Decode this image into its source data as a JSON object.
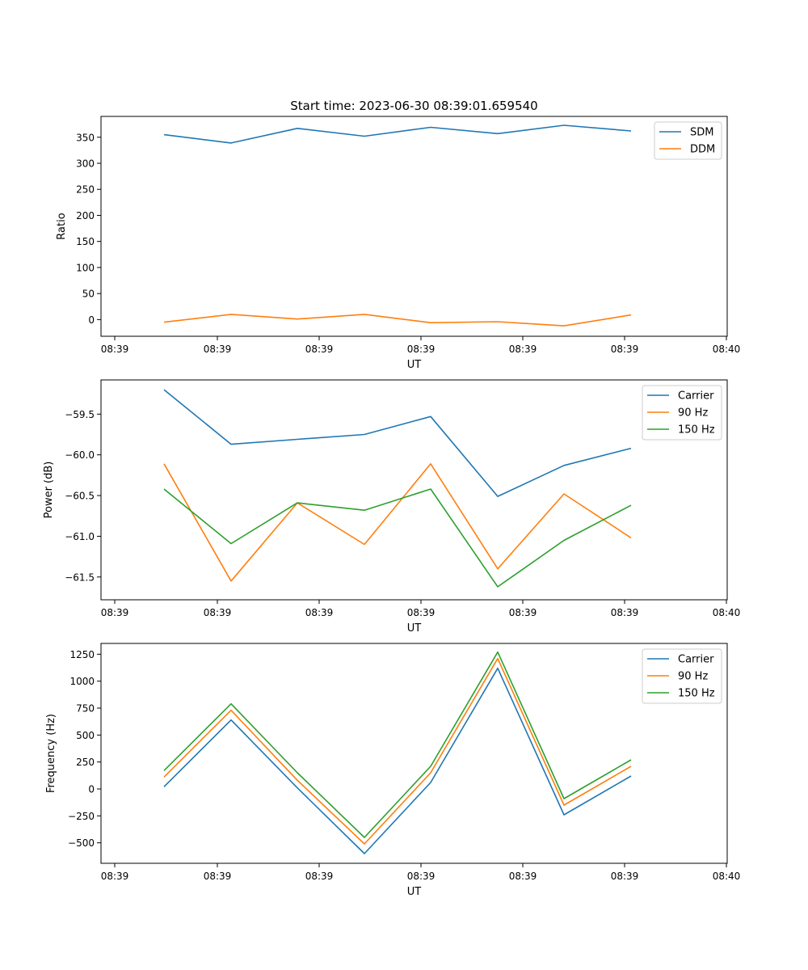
{
  "title": "Start time: 2023-06-30 08:39:01.659540",
  "chart_data": [
    {
      "type": "line",
      "xlabel": "UT",
      "ylabel": "Ratio",
      "x_tick_labels": [
        "08:39",
        "08:39",
        "08:39",
        "08:39",
        "08:39",
        "08:39",
        "08:39",
        "08:40"
      ],
      "y_ticks": [
        0,
        50,
        100,
        150,
        200,
        250,
        300,
        350
      ],
      "ylim": [
        -32,
        390
      ],
      "grid": false,
      "legend_position": "top-right",
      "series": [
        {
          "name": "SDM",
          "color": "#1f77b4",
          "values": [
            355,
            339,
            367,
            352,
            369,
            357,
            373,
            362
          ]
        },
        {
          "name": "DDM",
          "color": "#ff7f0e",
          "values": [
            -5,
            10,
            1,
            10,
            -6,
            -4,
            -12,
            9
          ]
        }
      ]
    },
    {
      "type": "line",
      "xlabel": "UT",
      "ylabel": "Power (dB)",
      "x_tick_labels": [
        "08:39",
        "08:39",
        "08:39",
        "08:39",
        "08:39",
        "08:39",
        "08:39",
        "08:40"
      ],
      "y_ticks": [
        -59.5,
        -60.0,
        -60.5,
        -61.0,
        -61.5
      ],
      "y_tick_labels": [
        "−59.5",
        "−60.0",
        "−60.5",
        "−61.0",
        "−61.5"
      ],
      "ylim": [
        -61.78,
        -59.08
      ],
      "grid": false,
      "legend_position": "top-right",
      "series": [
        {
          "name": "Carrier",
          "color": "#1f77b4",
          "values": [
            -59.2,
            -59.87,
            -59.81,
            -59.75,
            -59.53,
            -60.51,
            -60.13,
            -59.92
          ]
        },
        {
          "name": "90 Hz",
          "color": "#ff7f0e",
          "values": [
            -60.11,
            -61.55,
            -60.59,
            -61.1,
            -60.11,
            -61.4,
            -60.48,
            -61.02
          ]
        },
        {
          "name": "150 Hz",
          "color": "#2ca02c",
          "values": [
            -60.42,
            -61.09,
            -60.59,
            -60.68,
            -60.42,
            -61.62,
            -61.05,
            -60.62
          ]
        }
      ]
    },
    {
      "type": "line",
      "xlabel": "UT",
      "ylabel": "Frequency (Hz)",
      "x_tick_labels": [
        "08:39",
        "08:39",
        "08:39",
        "08:39",
        "08:39",
        "08:39",
        "08:39",
        "08:40"
      ],
      "y_ticks": [
        -500,
        -250,
        0,
        250,
        500,
        750,
        1000,
        1250
      ],
      "y_tick_labels": [
        "−500",
        "−250",
        "0",
        "250",
        "500",
        "750",
        "1000",
        "1250"
      ],
      "ylim": [
        -690,
        1350
      ],
      "grid": false,
      "legend_position": "top-right",
      "series": [
        {
          "name": "Carrier",
          "color": "#1f77b4",
          "values": [
            20,
            640,
            10,
            -600,
            60,
            1120,
            -240,
            120
          ]
        },
        {
          "name": "90 Hz",
          "color": "#ff7f0e",
          "values": [
            110,
            730,
            80,
            -510,
            150,
            1210,
            -150,
            210
          ]
        },
        {
          "name": "150 Hz",
          "color": "#2ca02c",
          "values": [
            170,
            790,
            150,
            -450,
            210,
            1270,
            -90,
            270
          ]
        }
      ]
    }
  ]
}
